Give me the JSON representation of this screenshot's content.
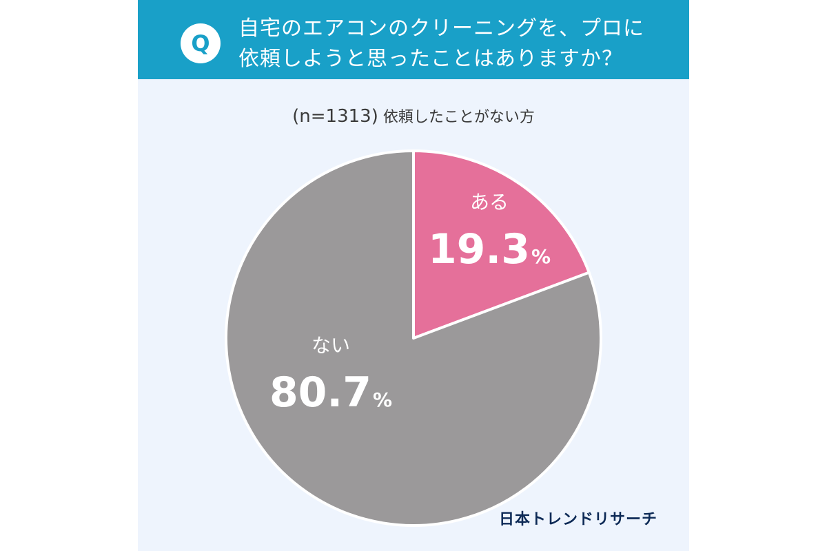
{
  "question": {
    "badge": "Q",
    "line1": "自宅のエアコンのクリーニングを、プロに",
    "line2": "依頼しようと思ったことはありますか？"
  },
  "subtitle": {
    "n": "(n=1313)",
    "text": "依頼したことがない方"
  },
  "chart_data": {
    "type": "pie",
    "categories": [
      "ある",
      "ない"
    ],
    "values": [
      19.3,
      80.7
    ],
    "value_labels": [
      "19.3",
      "80.7"
    ],
    "unit": "%",
    "colors": [
      "#e5709a",
      "#9b999a"
    ]
  },
  "logo": "日本トレンドリサーチ"
}
